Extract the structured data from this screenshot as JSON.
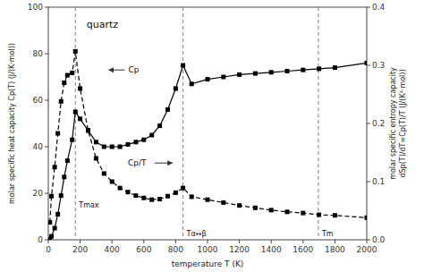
{
  "chart_data": {
    "type": "line",
    "title": "quartz",
    "x_label": "temperature T (K)",
    "y_label": "molar specific heat capacity Cp(T) (J/(K·mol))",
    "y2_label": [
      "molar specific entropy capacity",
      "dSp(T)/dT=Cp(T)/T (J/(K²·mol))"
    ],
    "x": [
      10,
      20,
      40,
      60,
      80,
      100,
      120,
      150,
      170,
      200,
      250,
      300,
      350,
      400,
      450,
      500,
      550,
      600,
      650,
      700,
      750,
      800,
      846,
      900,
      1000,
      1100,
      1200,
      1300,
      1400,
      1500,
      1600,
      1700,
      1800,
      2000
    ],
    "series": [
      {
        "axis": "y",
        "color": "black",
        "marker": "square",
        "line_style": "solid",
        "values": [
          0.3,
          1.5,
          5,
          11,
          19,
          27,
          34,
          43,
          55,
          52,
          47,
          42,
          40,
          40,
          40,
          41,
          42,
          43,
          45,
          49,
          56,
          65,
          75,
          67,
          69,
          70,
          71,
          71.5,
          72,
          72.5,
          73,
          73.5,
          74,
          76
        ]
      },
      {
        "axis": "y2",
        "color": "black",
        "marker": "square",
        "line_style": "dashed",
        "values": [
          0.03,
          0.075,
          0.125,
          0.183,
          0.238,
          0.27,
          0.283,
          0.287,
          0.324,
          0.26,
          0.188,
          0.14,
          0.114,
          0.1,
          0.089,
          0.082,
          0.076,
          0.072,
          0.069,
          0.07,
          0.075,
          0.081,
          0.089,
          0.074,
          0.069,
          0.064,
          0.059,
          0.055,
          0.051,
          0.048,
          0.046,
          0.043,
          0.042,
          0.038
        ]
      }
    ],
    "xlim": [
      0,
      2000
    ],
    "xticks": [
      0,
      200,
      400,
      600,
      800,
      1000,
      1200,
      1400,
      1600,
      1800,
      2000
    ],
    "ylim": [
      0,
      100
    ],
    "yticks": [
      0,
      20,
      40,
      60,
      80,
      100
    ],
    "y2lim": [
      0.0,
      0.4
    ],
    "y2ticks": [
      {
        "value": 0,
        "label": "0.0"
      },
      0.1,
      0.2,
      0.3,
      0.4
    ],
    "vlines": [
      {
        "x": 170,
        "label": "Tmax"
      },
      {
        "x": 846,
        "label": "Tα↔β"
      },
      {
        "x": 1696,
        "label": "Tm"
      }
    ],
    "annotations": [
      {
        "text": "Cp",
        "axis": "y"
      },
      {
        "text": "Cp/T",
        "axis": "y2"
      }
    ],
    "grid": false
  }
}
